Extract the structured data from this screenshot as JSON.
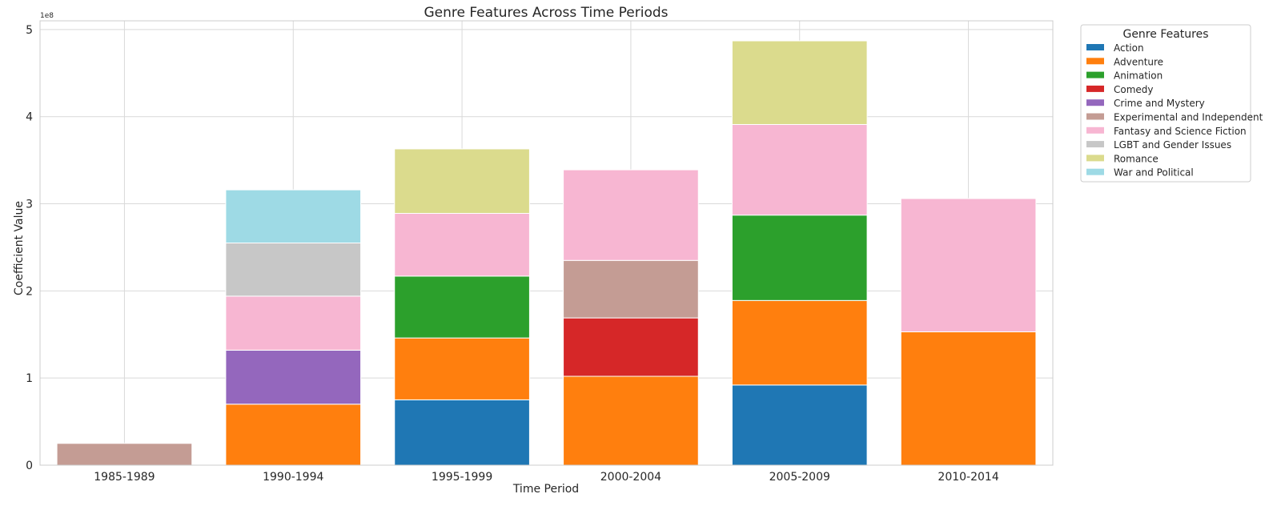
{
  "chart_data": {
    "type": "bar",
    "stacked": true,
    "title": "Genre Features Across Time Periods",
    "xlabel": "Time Period",
    "ylabel": "Coefficient Value",
    "y_offset_label": "1e8",
    "ylim": [
      0,
      5.1
    ],
    "yticks": [
      0,
      1,
      2,
      3,
      4,
      5
    ],
    "grid": true,
    "legend_title": "Genre Features",
    "legend_placement": "upper right, outside plot",
    "categories": [
      "1985-1989",
      "1990-1994",
      "1995-1999",
      "2000-2004",
      "2005-2009",
      "2010-2014"
    ],
    "series": [
      {
        "name": "Action",
        "color": "#1f77b4",
        "values": [
          0,
          0,
          0.75,
          0,
          0.92,
          0
        ]
      },
      {
        "name": "Adventure",
        "color": "#ff7f0e",
        "values": [
          0,
          0.7,
          0.71,
          1.02,
          0.97,
          1.53
        ]
      },
      {
        "name": "Animation",
        "color": "#2ca02c",
        "values": [
          0,
          0,
          0.71,
          0,
          0.98,
          0
        ]
      },
      {
        "name": "Comedy",
        "color": "#d62728",
        "values": [
          0,
          0,
          0,
          0.67,
          0,
          0
        ]
      },
      {
        "name": "Crime and Mystery",
        "color": "#9467bd",
        "values": [
          0,
          0.62,
          0,
          0,
          0,
          0
        ]
      },
      {
        "name": "Experimental and Independent",
        "color": "#c49c94",
        "values": [
          0.25,
          0,
          0,
          0.66,
          0,
          0
        ]
      },
      {
        "name": "Fantasy and Science Fiction",
        "color": "#f7b6d2",
        "values": [
          0,
          0.62,
          0.72,
          1.04,
          1.04,
          1.53
        ]
      },
      {
        "name": "LGBT and Gender Issues",
        "color": "#c7c7c7",
        "values": [
          0,
          0.61,
          0,
          0,
          0,
          0
        ]
      },
      {
        "name": "Romance",
        "color": "#dbdb8d",
        "values": [
          0,
          0,
          0.74,
          0,
          0.96,
          0
        ]
      },
      {
        "name": "War and Political",
        "color": "#9edae5",
        "values": [
          0,
          0.61,
          0,
          0,
          0,
          0
        ]
      }
    ]
  }
}
